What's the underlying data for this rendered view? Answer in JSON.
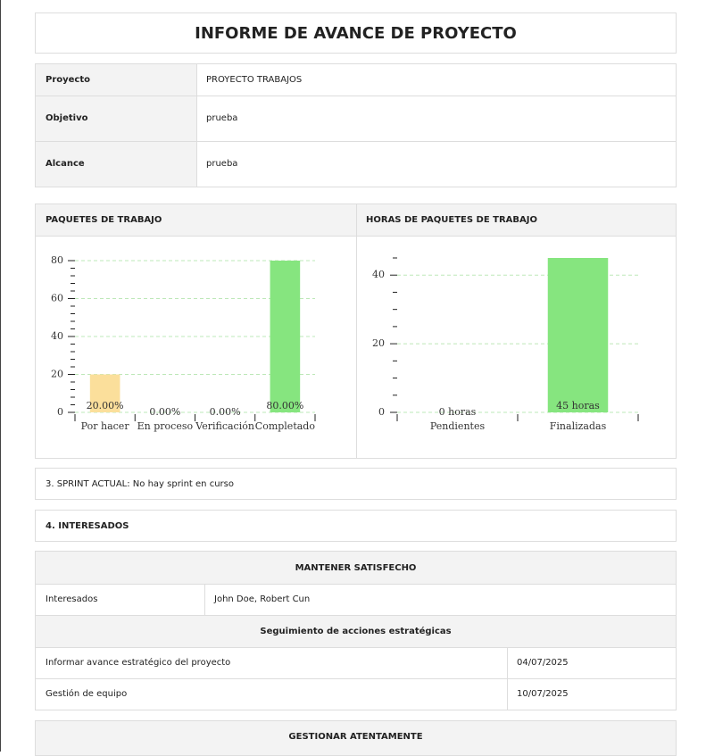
{
  "header": {
    "title": "INFORME DE AVANCE DE PROYECTO"
  },
  "project_table": {
    "rows": [
      [
        "Proyecto",
        "PROYECTO TRABAJOS"
      ],
      [
        "Objetivo",
        "prueba"
      ],
      [
        "Alcance",
        "prueba"
      ]
    ]
  },
  "chart_data": [
    {
      "type": "bar",
      "title": "PAQUETES DE TRABAJO",
      "categories": [
        "Por hacer",
        "En proceso",
        "Verificación",
        "Completado"
      ],
      "values": [
        20,
        0,
        0,
        80
      ],
      "value_labels": [
        "20.00%",
        "0.00%",
        "0.00%",
        "80.00%"
      ],
      "colors": [
        "#fbdf9b",
        "#86e57f",
        "#86e57f",
        "#86e57f"
      ],
      "ylim": [
        0,
        80
      ],
      "yticks": [
        0,
        20,
        40,
        60,
        80
      ],
      "yminorticks": [
        4,
        8,
        12,
        16,
        24,
        28,
        32,
        36,
        44,
        48,
        52,
        56,
        64,
        68,
        72,
        76
      ],
      "grid": true
    },
    {
      "type": "bar",
      "title": "HORAS DE PAQUETES DE TRABAJO",
      "categories": [
        "Pendientes",
        "Finalizadas"
      ],
      "values": [
        0,
        45
      ],
      "value_labels": [
        "0 horas",
        "45 horas"
      ],
      "colors": [
        "#fbdf9b",
        "#86e57f"
      ],
      "ylim": [
        0,
        45
      ],
      "yticks": [
        0,
        20,
        40
      ],
      "yminorticks": [
        5,
        10,
        15,
        25,
        30,
        35,
        45
      ],
      "grid": true
    }
  ],
  "sprint": {
    "text": "3. SPRINT ACTUAL: No hay sprint en curso"
  },
  "stakeholders": {
    "title": "4. INTERESADOS",
    "groups": [
      {
        "title": "MANTENER SATISFECHO",
        "label": "Interesados",
        "names": "John Doe, Robert Cun",
        "actions_title": "Seguimiento de acciones estratégicas",
        "actions": [
          [
            "Informar avance estratégico del proyecto",
            "04/07/2025"
          ],
          [
            "Gestión de equipo",
            "10/07/2025"
          ]
        ]
      },
      {
        "title": "GESTIONAR ATENTAMENTE"
      }
    ]
  }
}
